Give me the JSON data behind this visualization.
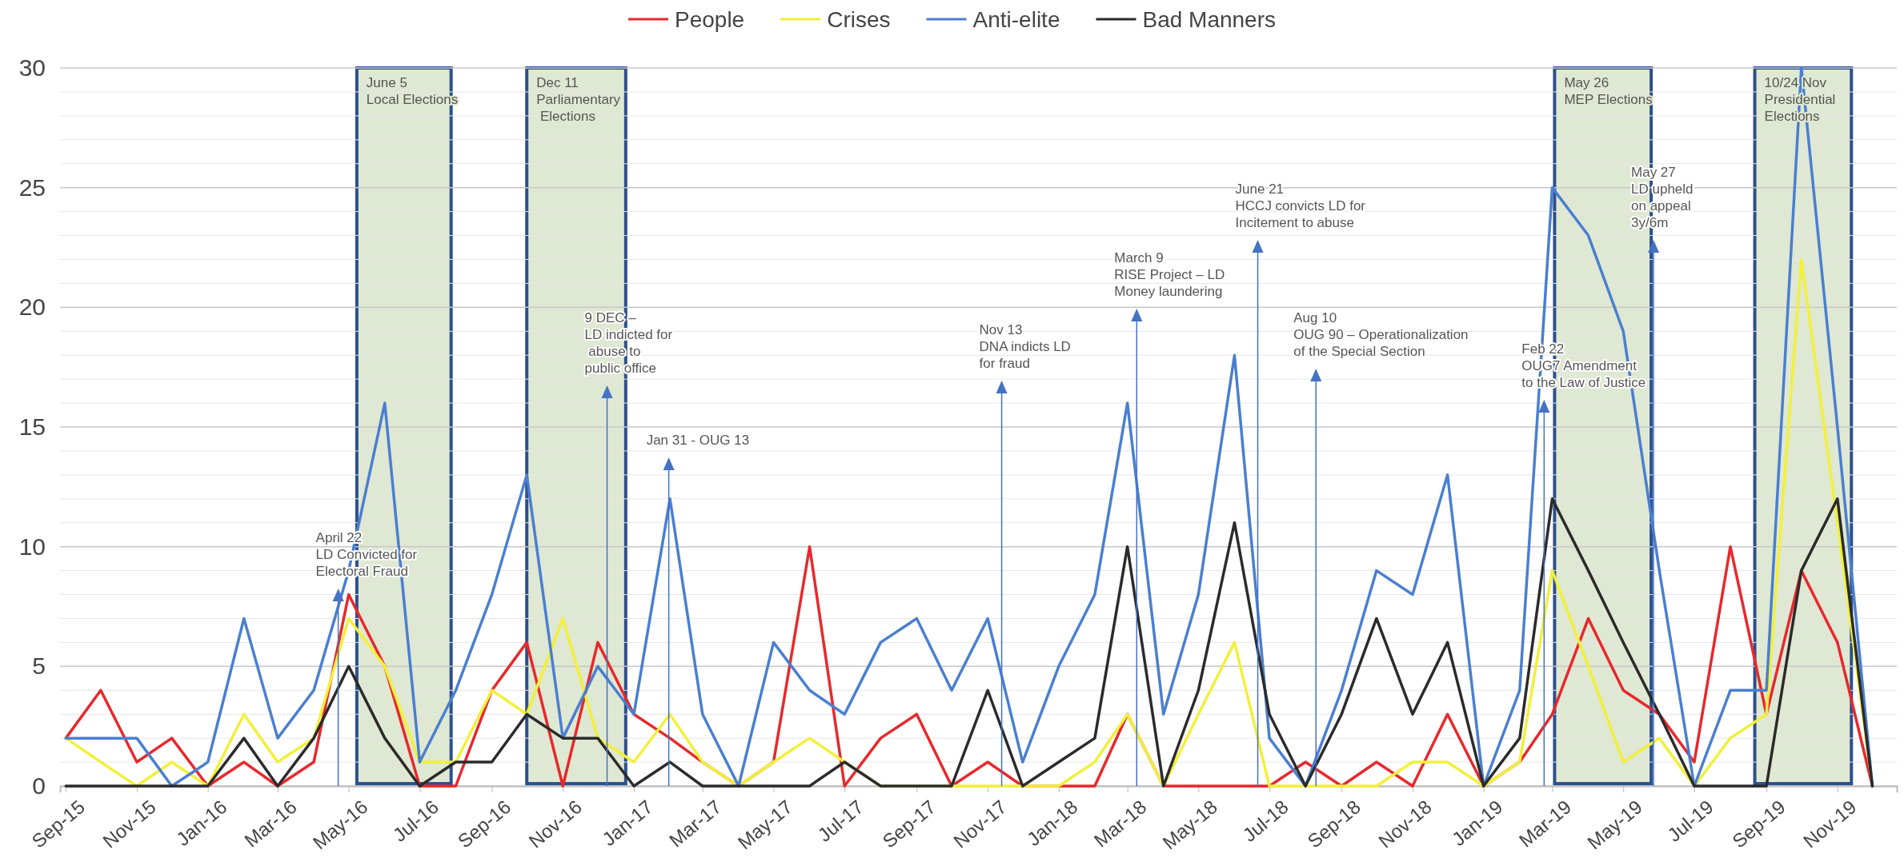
{
  "chart_data": {
    "type": "line",
    "x": [
      "2015-09",
      "2015-10",
      "2015-11",
      "2015-12",
      "2016-01",
      "2016-02",
      "2016-03",
      "2016-04",
      "2016-05",
      "2016-06",
      "2016-07",
      "2016-08",
      "2016-09",
      "2016-10",
      "2016-11",
      "2016-12",
      "2017-01",
      "2017-02",
      "2017-03",
      "2017-04",
      "2017-05",
      "2017-06",
      "2017-07",
      "2017-08",
      "2017-09",
      "2017-10",
      "2017-11",
      "2017-12",
      "2018-01",
      "2018-02",
      "2018-03",
      "2018-04",
      "2018-05",
      "2018-06",
      "2018-07",
      "2018-08",
      "2018-09",
      "2018-10",
      "2018-11",
      "2018-12",
      "2019-01",
      "2019-02",
      "2019-03",
      "2019-04",
      "2019-05",
      "2019-06",
      "2019-07",
      "2019-08",
      "2019-09",
      "2019-10",
      "2019-11",
      "2019-12"
    ],
    "series": [
      {
        "name": "People",
        "color": "#e8282c",
        "values": [
          2,
          4,
          1,
          2,
          0,
          1,
          0,
          1,
          8,
          5,
          0,
          0,
          4,
          6,
          0,
          6,
          3,
          2,
          1,
          0,
          1,
          10,
          0,
          2,
          3,
          0,
          1,
          0,
          0,
          0,
          3,
          0,
          0,
          0,
          0,
          1,
          0,
          1,
          0,
          3,
          0,
          1,
          3,
          7,
          4,
          3,
          1,
          10,
          3,
          9,
          6,
          0
        ]
      },
      {
        "name": "Crises",
        "color": "#f2f03a",
        "values": [
          2,
          1,
          0,
          1,
          0,
          3,
          1,
          2,
          7,
          5,
          1,
          1,
          4,
          3,
          7,
          2,
          1,
          3,
          1,
          0,
          1,
          2,
          1,
          0,
          0,
          0,
          0,
          0,
          0,
          1,
          3,
          0,
          3,
          6,
          0,
          0,
          0,
          0,
          1,
          1,
          0,
          1,
          9,
          5,
          1,
          2,
          0,
          2,
          3,
          22,
          11,
          0
        ]
      },
      {
        "name": "Anti-elite",
        "color": "#4a7fd0",
        "values": [
          2,
          2,
          2,
          0,
          1,
          7,
          2,
          4,
          9,
          16,
          1,
          4,
          8,
          13,
          2,
          5,
          3,
          12,
          3,
          0,
          6,
          4,
          3,
          6,
          7,
          4,
          7,
          1,
          5,
          8,
          16,
          3,
          8,
          18,
          2,
          0,
          4,
          9,
          8,
          13,
          0,
          4,
          25,
          23,
          19,
          9,
          0,
          4,
          4,
          30,
          15,
          0
        ]
      },
      {
        "name": "Bad Manners",
        "color": "#2b2b2b",
        "values": [
          0,
          0,
          0,
          0,
          0,
          2,
          0,
          2,
          5,
          2,
          0,
          1,
          1,
          3,
          2,
          2,
          0,
          1,
          0,
          0,
          0,
          0,
          1,
          0,
          0,
          0,
          4,
          0,
          1,
          2,
          10,
          0,
          4,
          11,
          3,
          0,
          3,
          7,
          3,
          6,
          0,
          2,
          12,
          9,
          6,
          3,
          0,
          0,
          0,
          9,
          12,
          0
        ]
      }
    ],
    "xlim": [
      "2015-08-27",
      "2019-12-22"
    ],
    "xticks": [
      {
        "value": "2015-09-01",
        "label": "Sep-15"
      },
      {
        "value": "2015-11-01",
        "label": "Nov-15"
      },
      {
        "value": "2016-01-01",
        "label": "Jan-16"
      },
      {
        "value": "2016-03-01",
        "label": "Mar-16"
      },
      {
        "value": "2016-05-01",
        "label": "May-16"
      },
      {
        "value": "2016-07-01",
        "label": "Jul-16"
      },
      {
        "value": "2016-09-01",
        "label": "Sep-16"
      },
      {
        "value": "2016-11-01",
        "label": "Nov-16"
      },
      {
        "value": "2017-01-01",
        "label": "Jan-17"
      },
      {
        "value": "2017-03-01",
        "label": "Mar-17"
      },
      {
        "value": "2017-05-01",
        "label": "May-17"
      },
      {
        "value": "2017-07-01",
        "label": "Jul-17"
      },
      {
        "value": "2017-09-01",
        "label": "Sep-17"
      },
      {
        "value": "2017-11-01",
        "label": "Nov-17"
      },
      {
        "value": "2018-01-01",
        "label": "Jan-18"
      },
      {
        "value": "2018-03-01",
        "label": "Mar-18"
      },
      {
        "value": "2018-05-01",
        "label": "May-18"
      },
      {
        "value": "2018-07-01",
        "label": "Jul-18"
      },
      {
        "value": "2018-09-01",
        "label": "Sep-18"
      },
      {
        "value": "2018-11-01",
        "label": "Nov-18"
      },
      {
        "value": "2019-01-01",
        "label": "Jan-19"
      },
      {
        "value": "2019-03-01",
        "label": "Mar-19"
      },
      {
        "value": "2019-05-01",
        "label": "May-19"
      },
      {
        "value": "2019-07-01",
        "label": "Jul-19"
      },
      {
        "value": "2019-09-01",
        "label": "Sep-19"
      },
      {
        "value": "2019-11-01",
        "label": "Nov-19"
      }
    ],
    "ylim": [
      0,
      30
    ],
    "yticks": [
      0,
      {
        "value": 1,
        "label": null
      },
      {
        "value": 2,
        "label": null
      },
      {
        "value": 3,
        "label": null
      },
      {
        "value": 4,
        "label": null
      },
      5,
      {
        "value": 6,
        "label": null
      },
      {
        "value": 7,
        "label": null
      },
      {
        "value": 8,
        "label": null
      },
      {
        "value": 9,
        "label": null
      },
      10,
      {
        "value": 11,
        "label": null
      },
      {
        "value": 12,
        "label": null
      },
      {
        "value": 13,
        "label": null
      },
      {
        "value": 14,
        "label": null
      },
      15,
      {
        "value": 16,
        "label": null
      },
      {
        "value": 17,
        "label": null
      },
      {
        "value": 18,
        "label": null
      },
      {
        "value": 19,
        "label": null
      },
      20,
      {
        "value": 21,
        "label": null
      },
      {
        "value": 22,
        "label": null
      },
      {
        "value": 23,
        "label": null
      },
      {
        "value": 24,
        "label": null
      },
      25,
      {
        "value": 26,
        "label": null
      },
      {
        "value": 27,
        "label": null
      },
      {
        "value": 28,
        "label": null
      },
      {
        "value": 29,
        "label": null
      },
      30
    ],
    "grid": "y",
    "legend": "top",
    "bands": [
      {
        "axis": "x",
        "from": "2016-05-08",
        "to": "2016-07-28",
        "label": "June 5\nLocal Elections",
        "color": "#dfe8d2"
      },
      {
        "axis": "x",
        "from": "2016-10-01",
        "to": "2016-12-25",
        "label": "Dec 11\nParliamentary\n Elections",
        "color": "#dfe8d2"
      },
      {
        "axis": "x",
        "from": "2019-03-03",
        "to": "2019-05-25",
        "label": "May 26\nMEP Elections",
        "color": "#dfe8d2"
      },
      {
        "axis": "x",
        "from": "2019-08-22",
        "to": "2019-11-13",
        "label": "10/24 Nov\nPresidential\nElections",
        "color": "#dfe8d2"
      }
    ],
    "ref_lines": [
      {
        "axis": "x",
        "value": "2016-04-22",
        "label": "April 22\nLD Convicted for\nElectoral Fraud",
        "color": "#4472c4"
      },
      {
        "axis": "x",
        "value": "2016-12-09",
        "label": "9 DEC –\nLD indicted for\n abuse to\npublic office",
        "color": "#4472c4"
      },
      {
        "axis": "x",
        "value": "2017-01-31",
        "label": "Jan 31 - OUG 13",
        "color": "#4472c4"
      },
      {
        "axis": "x",
        "value": "2017-11-13",
        "label": "Nov 13\nDNA indicts LD\nfor fraud",
        "color": "#4472c4"
      },
      {
        "axis": "x",
        "value": "2018-03-09",
        "label": "March 9\nRISE Project – LD\nMoney laundering",
        "color": "#4472c4"
      },
      {
        "axis": "x",
        "value": "2018-06-21",
        "label": "June 21\nHCCJ convicts LD for\nIncitement to abuse",
        "color": "#4472c4"
      },
      {
        "axis": "x",
        "value": "2018-08-10",
        "label": "Aug 10\nOUG 90 – Operationalization\nof the Special Section",
        "color": "#4472c4"
      },
      {
        "axis": "x",
        "value": "2019-02-22",
        "label": "Feb 22\nOUG7 Amendment\nto the Law of Justice",
        "color": "#4472c4"
      },
      {
        "axis": "x",
        "value": "2019-05-27",
        "label": "May 27\nLD upheld\non appeal\n3y/6m",
        "color": "#4472c4"
      }
    ]
  }
}
